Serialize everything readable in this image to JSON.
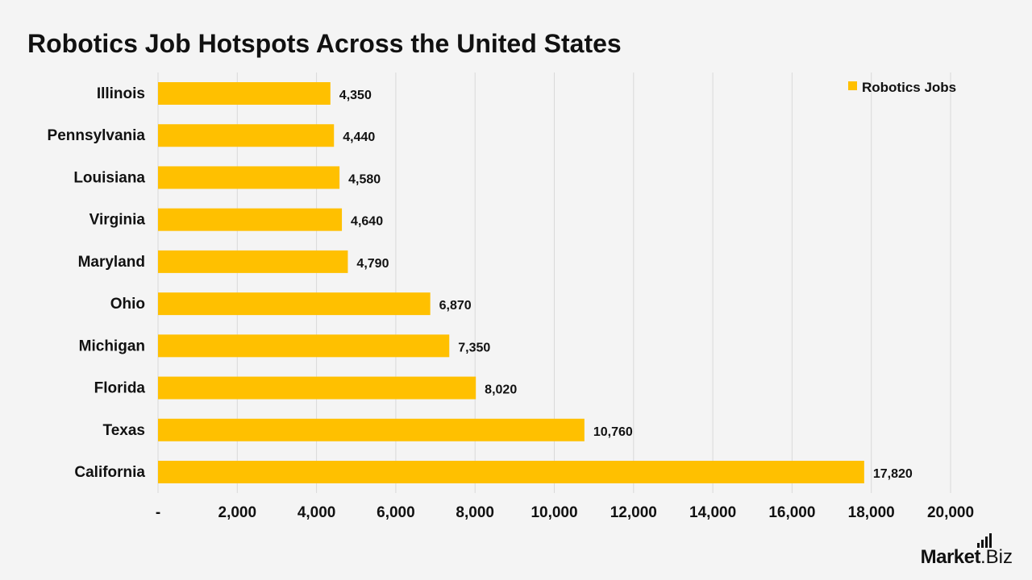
{
  "chart_data": {
    "type": "bar",
    "orientation": "horizontal",
    "title": "Robotics Job Hotspots Across the United States",
    "categories": [
      "Illinois",
      "Pennsylvania",
      "Louisiana",
      "Virginia",
      "Maryland",
      "Ohio",
      "Michigan",
      "Florida",
      "Texas",
      "California"
    ],
    "series": [
      {
        "name": "Robotics Jobs",
        "values": [
          4350,
          4440,
          4580,
          4640,
          4790,
          6870,
          7350,
          8020,
          10760,
          17820
        ],
        "color": "#ffc000"
      }
    ],
    "data_labels": [
      "4,350",
      "4,440",
      "4,580",
      "4,640",
      "4,790",
      "6,870",
      "7,350",
      "8,020",
      "10,760",
      "17,820"
    ],
    "xlim": [
      0,
      20000
    ],
    "x_ticks": [
      0,
      2000,
      4000,
      6000,
      8000,
      10000,
      12000,
      14000,
      16000,
      18000,
      20000
    ],
    "x_tick_labels": [
      "-",
      "2,000",
      "4,000",
      "6,000",
      "8,000",
      "10,000",
      "12,000",
      "14,000",
      "16,000",
      "18,000",
      "20,000"
    ],
    "xlabel": "",
    "ylabel": "",
    "grid": "vertical",
    "legend_position": "top-right"
  },
  "colors": {
    "bar": "#ffc000",
    "grid": "#d9d9d9",
    "background": "#f4f4f4",
    "text": "#111111"
  },
  "brand": {
    "main": "Market",
    "suffix": ".Biz",
    "icon": "bar-chart-logo-icon"
  }
}
